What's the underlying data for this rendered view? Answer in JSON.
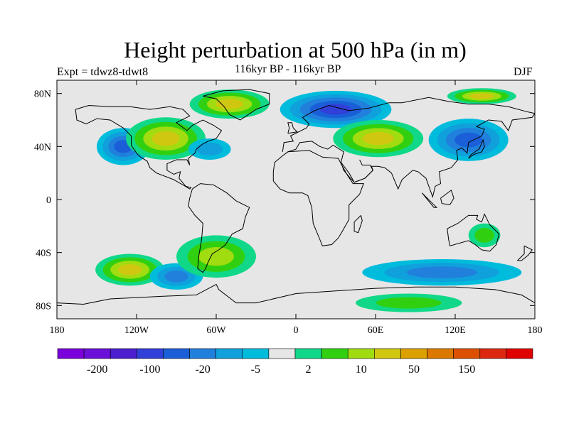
{
  "header": {
    "title": "Height perturbation at 500 hPa (in m)",
    "subtitle": "116kyr BP - 116kyr BP",
    "expt": "Expt = tdwz8-tdwt8",
    "season": "DJF"
  },
  "chart_data": {
    "type": "heatmap",
    "title": "Height perturbation at 500 hPa (in m)",
    "subtitle": "116kyr BP - 116kyr BP",
    "projection": "cylindrical equidistant",
    "lon_range": [
      -180,
      180
    ],
    "lat_range": [
      -90,
      90
    ],
    "x_ticks": [
      {
        "value": -180,
        "label": "180"
      },
      {
        "value": -120,
        "label": "120W"
      },
      {
        "value": -60,
        "label": "60W"
      },
      {
        "value": 0,
        "label": "0"
      },
      {
        "value": 60,
        "label": "60E"
      },
      {
        "value": 120,
        "label": "120E"
      },
      {
        "value": 180,
        "label": "180"
      }
    ],
    "y_ticks": [
      {
        "value": 80,
        "label": "80N"
      },
      {
        "value": 40,
        "label": "40N"
      },
      {
        "value": 0,
        "label": "0"
      },
      {
        "value": -40,
        "label": "40S"
      },
      {
        "value": -80,
        "label": "80S"
      }
    ],
    "colorbar": {
      "colors": [
        "#7a00dc",
        "#6a10d8",
        "#4b1fd0",
        "#3040d8",
        "#1a5fd8",
        "#2080dc",
        "#10a0dc",
        "#00bcdc",
        "#e6e6e6",
        "#10d888",
        "#30d010",
        "#a0dc10",
        "#d0c810",
        "#dca000",
        "#dc7800",
        "#dc5000",
        "#dc2810",
        "#e00000"
      ],
      "labels": [
        {
          "boundary": 1,
          "text": "-200"
        },
        {
          "boundary": 3,
          "text": "-100"
        },
        {
          "boundary": 5,
          "text": "-20"
        },
        {
          "boundary": 7,
          "text": "-5"
        },
        {
          "boundary": 9,
          "text": "2"
        },
        {
          "boundary": 11,
          "text": "10"
        },
        {
          "boundary": 13,
          "text": "50"
        },
        {
          "boundary": 15,
          "text": "150"
        }
      ]
    },
    "background_color": "#e6e6e6",
    "anomalies": [
      {
        "lon": -130,
        "lat": 40,
        "rx": 20,
        "ry": 14,
        "value": -30,
        "desc": "NE Pacific low"
      },
      {
        "lon": -98,
        "lat": 46,
        "rx": 30,
        "ry": 16,
        "value": 30,
        "desc": "North America high"
      },
      {
        "lon": -50,
        "lat": 72,
        "rx": 30,
        "ry": 11,
        "value": 40,
        "desc": "Greenland high"
      },
      {
        "lon": -65,
        "lat": 38,
        "rx": 16,
        "ry": 8,
        "value": -8,
        "desc": "W Atlantic low"
      },
      {
        "lon": 30,
        "lat": 68,
        "rx": 42,
        "ry": 14,
        "value": -60,
        "desc": "Scandinavia/Arctic low"
      },
      {
        "lon": 62,
        "lat": 46,
        "rx": 34,
        "ry": 14,
        "value": 30,
        "desc": "Central Asia high"
      },
      {
        "lon": 130,
        "lat": 45,
        "rx": 30,
        "ry": 16,
        "value": -30,
        "desc": "NE Asia low"
      },
      {
        "lon": 140,
        "lat": 78,
        "rx": 26,
        "ry": 6,
        "value": 30,
        "desc": "Arctic high"
      },
      {
        "lon": -125,
        "lat": -53,
        "rx": 26,
        "ry": 12,
        "value": 40,
        "desc": "South Pacific high"
      },
      {
        "lon": -90,
        "lat": -58,
        "rx": 20,
        "ry": 10,
        "value": -20,
        "desc": "SE Pacific low"
      },
      {
        "lon": -60,
        "lat": -43,
        "rx": 30,
        "ry": 16,
        "value": 20,
        "desc": "South America high"
      },
      {
        "lon": 110,
        "lat": -55,
        "rx": 60,
        "ry": 10,
        "value": -20,
        "desc": "Southern Indian Ocean low"
      },
      {
        "lon": 85,
        "lat": -78,
        "rx": 40,
        "ry": 7,
        "value": 10,
        "desc": "Antarctic high"
      },
      {
        "lon": 142,
        "lat": -27,
        "rx": 12,
        "ry": 9,
        "value": 10,
        "desc": "Australia high"
      }
    ]
  }
}
